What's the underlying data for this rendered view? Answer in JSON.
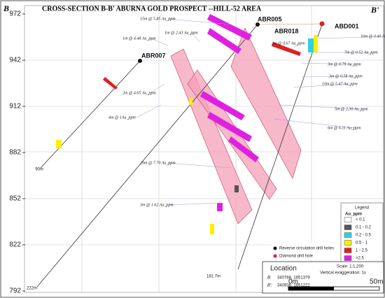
{
  "title": "CROSS-SECTION  B-B' ABURNA GOLD PROSPECT --HILL-52 AREA",
  "corner_left": "B",
  "corner_right": "B'",
  "y_axis_ticks": [
    "972",
    "942",
    "912",
    "882",
    "852",
    "822",
    "792"
  ],
  "holes": [
    {
      "label": "ABR005",
      "depth": "222m"
    },
    {
      "label": "ABR018",
      "depth": "181.7m"
    },
    {
      "label": "ABD001"
    },
    {
      "label": "ABR007",
      "depth": "90m"
    }
  ],
  "annotations": [
    "15m @ 5.85 Au_ppm",
    "1m @ 2.43 Au_ppm",
    "1m @ 4.48 Au_ppm",
    "2m @ 0.67 Au_ppm",
    "16m @ 0.40 Au_ppm",
    "7m @ 0.52 Au_ppm",
    "3m @ 0.79 Au_ppm",
    "3m @ 0.58 Au_ppm",
    "10m @ 5.47 Au_ppm",
    "2m @ 4.65 Au_ppm",
    "5m @ 2.30 Au_ppm",
    "4m @ 1Au_ppm",
    "6m @ 6.11 Au_ppm",
    "20m @ 7.70 Au_ppm",
    "3m @ 1.62 Au_ppm"
  ],
  "legend": {
    "title": "Legend",
    "subtitle": "Au_ppm",
    "entries": [
      "< 0.1",
      "0.1 - 0.2",
      "0.2 - 0.5",
      "0.5 - 1",
      "1 - 2.5",
      ">2.5"
    ],
    "holes": [
      "Reverse circulation drill holes",
      "Diamond drill hole"
    ]
  },
  "location": {
    "title": "Location",
    "b_label": "B:",
    "b_value": "340768, 1651379",
    "b2_label": "B':",
    "b2_value": "340938, 1651222",
    "scale": "Scale: 1:1,200",
    "exaggeration": "Vertical exaggeration: 1x",
    "bar_start": "0m",
    "bar_end": "50m"
  }
}
